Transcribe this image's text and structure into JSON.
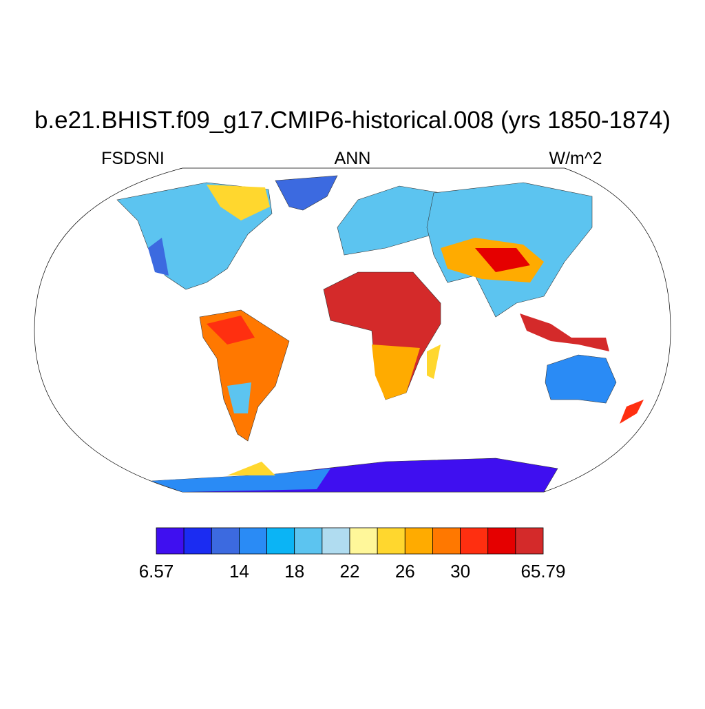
{
  "title": "b.e21.BHIST.f09_g17.CMIP6-historical.008 (yrs 1850-1874)",
  "left_string": "FSDSNI",
  "center_string": "ANN",
  "right_string": "W/m^2",
  "colorbar": {
    "colors": [
      "#3f0ff0",
      "#1b2cf2",
      "#3c6ae0",
      "#2a8bf5",
      "#0bb4f5",
      "#5cc4f0",
      "#b0dcf0",
      "#fff79a",
      "#ffd72e",
      "#ffab00",
      "#ff7800",
      "#ff2f10",
      "#e50000",
      "#d42a2a"
    ],
    "labels": [
      "6.57",
      null,
      null,
      "14",
      null,
      "18",
      null,
      "22",
      null,
      "26",
      null,
      "30",
      null,
      null,
      "65.79"
    ]
  }
}
